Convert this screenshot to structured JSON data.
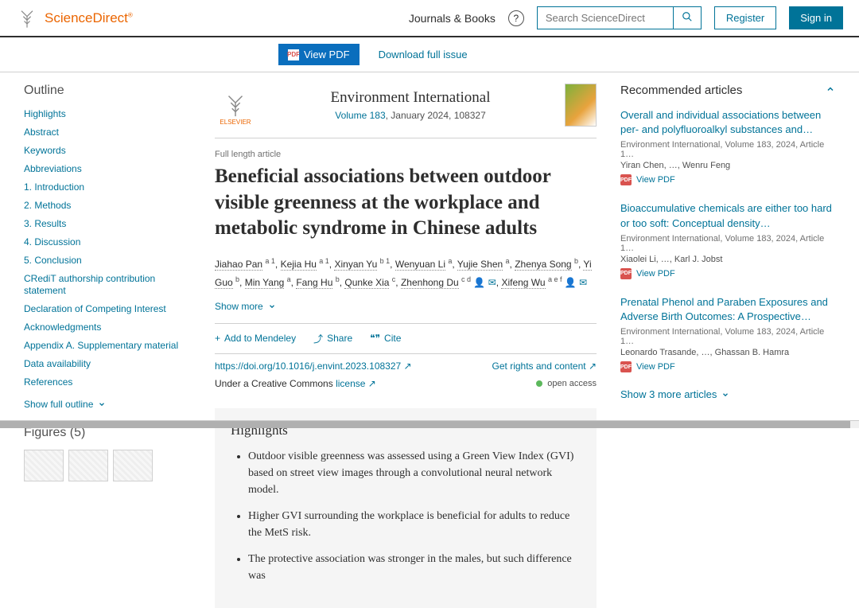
{
  "header": {
    "brand": "ScienceDirect",
    "journals_books": "Journals & Books",
    "search_placeholder": "Search ScienceDirect",
    "register": "Register",
    "signin": "Sign in"
  },
  "toolbar": {
    "view_pdf": "View PDF",
    "download_issue": "Download full issue"
  },
  "outline": {
    "title": "Outline",
    "items": [
      "Highlights",
      "Abstract",
      "Keywords",
      "Abbreviations",
      "1. Introduction",
      "2. Methods",
      "3. Results",
      "4. Discussion",
      "5. Conclusion",
      "CRediT authorship contribution statement",
      "Declaration of Competing Interest",
      "Acknowledgments",
      "Appendix A. Supplementary material",
      "Data availability",
      "References"
    ],
    "show_full": "Show full outline",
    "figures_title": "Figures (5)"
  },
  "journal": {
    "name": "Environment International",
    "volume_link": "Volume 183",
    "volume_rest": ", January 2024, 108327",
    "publisher": "ELSEVIER"
  },
  "article": {
    "type": "Full length article",
    "title": "Beneficial associations between outdoor visible greenness at the workplace and metabolic syndrome in Chinese adults",
    "authors_html": [
      {
        "n": "Jiahao Pan",
        "s": "a 1"
      },
      {
        "n": "Kejia Hu",
        "s": "a 1"
      },
      {
        "n": "Xinyan Yu",
        "s": "b 1"
      },
      {
        "n": "Wenyuan Li",
        "s": "a"
      },
      {
        "n": "Yujie Shen",
        "s": "a"
      },
      {
        "n": "Zhenya Song",
        "s": "b"
      },
      {
        "n": "Yi Guo",
        "s": "b"
      },
      {
        "n": "Min Yang",
        "s": "a"
      },
      {
        "n": "Fang Hu",
        "s": "b"
      },
      {
        "n": "Qunke Xia",
        "s": "c"
      },
      {
        "n": "Zhenhong Du",
        "s": "c d"
      },
      {
        "n": "Xifeng Wu",
        "s": "a e f"
      }
    ],
    "show_more": "Show more",
    "add_mendeley": "Add to Mendeley",
    "share": "Share",
    "cite": "Cite",
    "doi": "https://doi.org/10.1016/j.envint.2023.108327",
    "rights": "Get rights and content",
    "license_prefix": "Under a Creative Commons ",
    "license_link": "license",
    "open_access": "open access"
  },
  "highlights": {
    "heading": "Highlights",
    "bullets": [
      "Outdoor visible greenness was assessed using a Green View Index (GVI) based on street view images through a convolutional neural network model.",
      "Higher GVI surrounding the workplace is beneficial for adults to reduce the MetS risk.",
      "The protective association was stronger in the males, but such difference was"
    ]
  },
  "recommended": {
    "heading": "Recommended articles",
    "items": [
      {
        "title": "Overall and individual associations between per- and polyfluoroalkyl substances and…",
        "meta": "Environment International, Volume 183, 2024, Article 1…",
        "auth": "Yiran Chen, …, Wenru Feng",
        "pdf": "View PDF"
      },
      {
        "title": "Bioaccumulative chemicals are either too hard or too soft: Conceptual density…",
        "meta": "Environment International, Volume 183, 2024, Article 1…",
        "auth": "Xiaolei Li, …, Karl J. Jobst",
        "pdf": "View PDF"
      },
      {
        "title": "Prenatal Phenol and Paraben Exposures and Adverse Birth Outcomes: A Prospective…",
        "meta": "Environment International, Volume 183, 2024, Article 1…",
        "auth": "Leonardo Trasande, …, Ghassan B. Hamra",
        "pdf": "View PDF"
      }
    ],
    "show_more": "Show 3 more articles"
  }
}
